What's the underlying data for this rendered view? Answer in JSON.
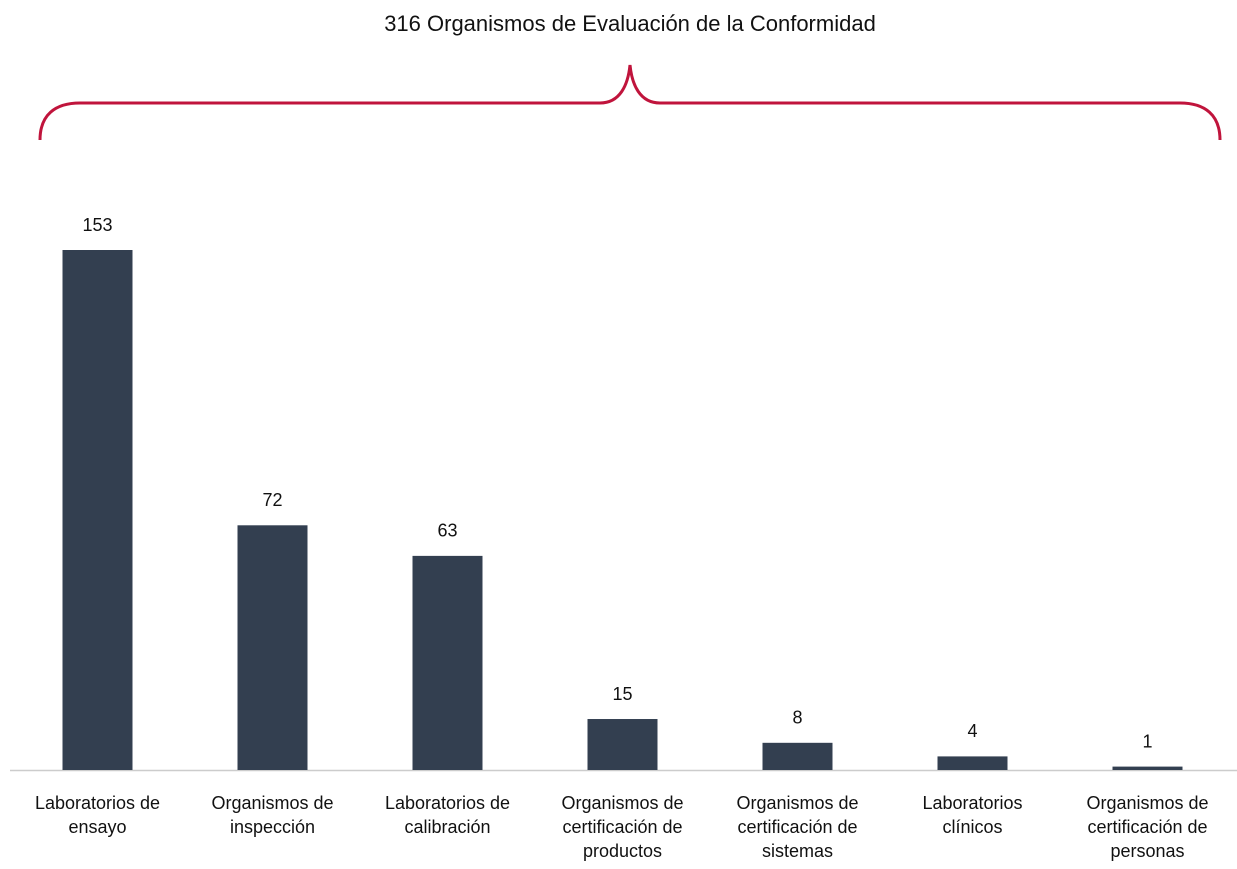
{
  "chart_data": {
    "type": "bar",
    "title": "316 Organismos de Evaluación de la Conformidad",
    "categories": [
      "Laboratorios de ensayo",
      "Organismos de inspección",
      "Laboratorios de calibración",
      "Organismos de certificación de productos",
      "Organismos de certificación de sistemas",
      "Laboratorios clínicos",
      "Organismos de certificación de personas"
    ],
    "values": [
      153,
      72,
      63,
      15,
      8,
      4,
      1
    ],
    "color": "#333f50",
    "brace_color": "#c0143c"
  }
}
